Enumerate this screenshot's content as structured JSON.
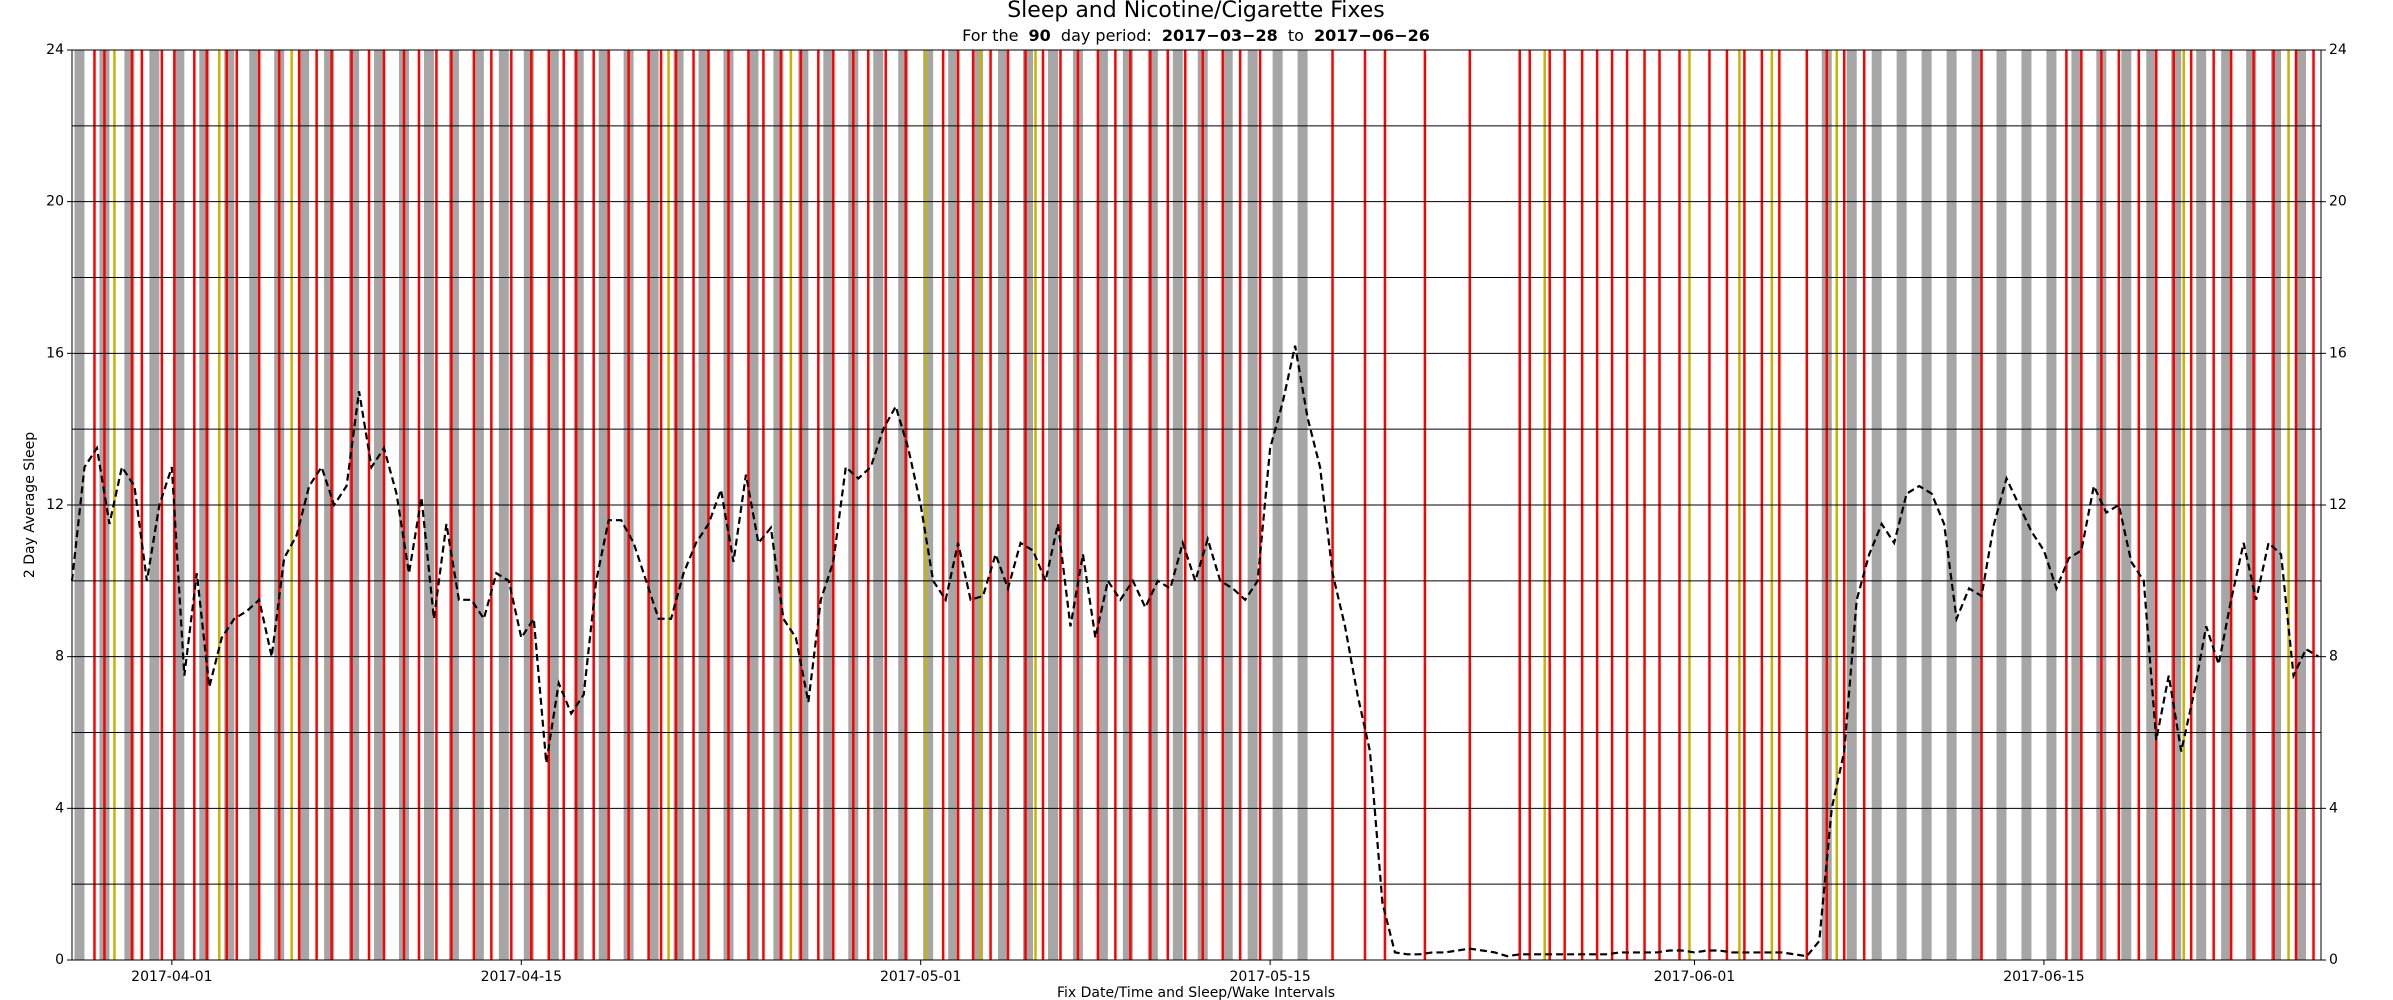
{
  "chart_data": {
    "type": "line",
    "title": "Sleep and Nicotine/Cigarette Fixes",
    "subtitle": [
      "For the",
      "90",
      "day period:",
      "2017−03−28",
      "to",
      "2017−06−26"
    ],
    "xlabel": "Fix Date/Time and Sleep/Wake Intervals",
    "ylabel": "2 Day Average Sleep",
    "xlim": [
      87,
      177.1
    ],
    "xticks": [
      {
        "value": 91,
        "label": "2017-04-01"
      },
      {
        "value": 105,
        "label": "2017-04-15"
      },
      {
        "value": 121,
        "label": "2017-05-01"
      },
      {
        "value": 135,
        "label": "2017-05-15"
      },
      {
        "value": 152,
        "label": "2017-06-01"
      },
      {
        "value": 166,
        "label": "2017-06-15"
      }
    ],
    "ylim": [
      0,
      24
    ],
    "yticks": [
      0,
      4,
      8,
      12,
      16,
      20,
      24
    ],
    "yminor": [
      2,
      6,
      10,
      14,
      18,
      22
    ],
    "grid": true,
    "color": "#000000",
    "x": [
      87,
      87.5,
      88,
      88.5,
      89,
      89.5,
      90,
      90.5,
      91,
      91.5,
      92,
      92.5,
      93,
      93.5,
      94,
      94.5,
      95,
      95.5,
      96,
      96.5,
      97,
      97.5,
      98,
      98.5,
      99,
      99.5,
      100,
      100.5,
      101,
      101.5,
      102,
      102.5,
      103,
      103.5,
      104,
      104.5,
      105,
      105.5,
      106,
      106.5,
      107,
      107.5,
      108,
      108.5,
      109,
      109.5,
      110,
      110.5,
      111,
      111.5,
      112,
      112.5,
      113,
      113.5,
      114,
      114.5,
      115,
      115.5,
      116,
      116.5,
      117,
      117.5,
      118,
      118.5,
      119,
      119.5,
      120,
      120.5,
      121,
      121.5,
      122,
      122.5,
      123,
      123.5,
      124,
      124.5,
      125,
      125.5,
      126,
      126.5,
      127,
      127.5,
      128,
      128.5,
      129,
      129.5,
      130,
      130.5,
      131,
      131.5,
      132,
      132.5,
      133,
      133.5,
      134,
      134.5,
      135,
      135.5,
      136,
      136.5,
      137,
      137.5,
      138,
      138.5,
      139,
      139.5,
      140,
      140.5,
      141,
      141.5,
      142,
      142.5,
      143,
      143.5,
      144,
      144.5,
      145,
      145.5,
      146,
      146.5,
      147,
      147.5,
      148,
      148.5,
      149,
      149.5,
      150,
      150.5,
      151,
      151.5,
      152,
      152.5,
      153,
      153.5,
      154,
      154.5,
      155,
      155.5,
      156,
      156.5,
      157,
      157.5,
      158,
      158.5,
      159,
      159.5,
      160,
      160.5,
      161,
      161.5,
      162,
      162.5,
      163,
      163.5,
      164,
      164.5,
      165,
      165.5,
      166,
      166.5,
      167,
      167.5,
      168,
      168.5,
      169,
      169.5,
      170,
      170.5,
      171,
      171.5,
      172,
      172.5,
      173,
      173.5,
      174,
      174.5,
      175,
      175.5,
      176,
      176.5,
      177
    ],
    "values": [
      10,
      13,
      13.5,
      11.5,
      13,
      12.5,
      10,
      12,
      13,
      7.5,
      10.2,
      7.2,
      8.5,
      9,
      9.2,
      9.5,
      8,
      10.6,
      11.2,
      12.5,
      13,
      12,
      12.5,
      15,
      13,
      13.5,
      12.3,
      10.2,
      12.2,
      9,
      11.5,
      9.5,
      9.5,
      9,
      10.2,
      10,
      8.5,
      9,
      5.2,
      7.3,
      6.5,
      7,
      10,
      11.6,
      11.6,
      11,
      10,
      9,
      9,
      10.2,
      11,
      11.5,
      12.4,
      10.5,
      12.8,
      11,
      11.4,
      9,
      8.5,
      6.8,
      9.5,
      10.5,
      13,
      12.7,
      13,
      14,
      14.6,
      13.5,
      12,
      10,
      9.5,
      11,
      9.5,
      9.6,
      10.7,
      9.8,
      11,
      10.8,
      10,
      11.5,
      8.8,
      10.7,
      8.5,
      10,
      9.5,
      10,
      9.3,
      10,
      9.8,
      11,
      10,
      11.1,
      10,
      9.8,
      9.5,
      10,
      13.5,
      14.7,
      16.2,
      14.3,
      13,
      10.2,
      8.8,
      7,
      5.5,
      1.5,
      0.2,
      0.15,
      0.15,
      0.2,
      0.2,
      0.25,
      0.3,
      0.25,
      0.2,
      0.1,
      0.15,
      0.15,
      0.15,
      0.15,
      0.15,
      0.15,
      0.15,
      0.15,
      0.2,
      0.2,
      0.2,
      0.2,
      0.25,
      0.25,
      0.2,
      0.25,
      0.25,
      0.2,
      0.2,
      0.2,
      0.2,
      0.2,
      0.15,
      0.1,
      0.5,
      4,
      5.5,
      9.5,
      10.7,
      11.5,
      11,
      12.3,
      12.5,
      12.3,
      11.5,
      9,
      9.8,
      9.6,
      11.5,
      12.7,
      12,
      11.3,
      10.8,
      9.8,
      10.6,
      10.8,
      12.5,
      11.8,
      12,
      10.5,
      10,
      5.8,
      7.5,
      5.5,
      7,
      8.8,
      7.8,
      9.5,
      11,
      9.5,
      11,
      10.7,
      7.5,
      8.2,
      8
    ],
    "sleep_color": "#a6a6a6",
    "sleep": [
      [
        87.1,
        87.5
      ],
      [
        88.1,
        88.5
      ],
      [
        89.1,
        89.5
      ],
      [
        90.1,
        90.5
      ],
      [
        91.1,
        91.5
      ],
      [
        92.1,
        92.5
      ],
      [
        93.1,
        93.5
      ],
      [
        94.1,
        94.5
      ],
      [
        95.1,
        95.5
      ],
      [
        96.1,
        96.5
      ],
      [
        97.1,
        97.5
      ],
      [
        98.1,
        98.5
      ],
      [
        99.1,
        99.5
      ],
      [
        100.1,
        100.5
      ],
      [
        101.1,
        101.5
      ],
      [
        102.1,
        102.5
      ],
      [
        103.1,
        103.5
      ],
      [
        104.1,
        104.5
      ],
      [
        105.1,
        105.5
      ],
      [
        106.1,
        106.5
      ],
      [
        107.1,
        107.5
      ],
      [
        108.1,
        108.5
      ],
      [
        109.1,
        109.5
      ],
      [
        110.1,
        110.5
      ],
      [
        111.1,
        111.5
      ],
      [
        112.1,
        112.5
      ],
      [
        113.1,
        113.5
      ],
      [
        114.1,
        114.5
      ],
      [
        115.1,
        115.5
      ],
      [
        116.1,
        116.5
      ],
      [
        117.1,
        117.5
      ],
      [
        118.1,
        118.5
      ],
      [
        119.1,
        119.5
      ],
      [
        120.1,
        120.5
      ],
      [
        121.1,
        121.5
      ],
      [
        122.1,
        122.5
      ],
      [
        123.1,
        123.5
      ],
      [
        124.1,
        124.5
      ],
      [
        125.1,
        125.5
      ],
      [
        126.1,
        126.5
      ],
      [
        127.1,
        127.5
      ],
      [
        128.1,
        128.5
      ],
      [
        129.1,
        129.5
      ],
      [
        130.1,
        130.5
      ],
      [
        131.1,
        131.5
      ],
      [
        132.1,
        132.5
      ],
      [
        133.1,
        133.5
      ],
      [
        134.1,
        134.5
      ],
      [
        135.1,
        135.5
      ],
      [
        136.1,
        136.5
      ],
      [
        157.1,
        157.5
      ],
      [
        158.1,
        158.5
      ],
      [
        159.1,
        159.5
      ],
      [
        160.1,
        160.5
      ],
      [
        161.1,
        161.5
      ],
      [
        162.1,
        162.5
      ],
      [
        163.1,
        163.5
      ],
      [
        164.1,
        164.5
      ],
      [
        165.1,
        165.5
      ],
      [
        166.1,
        166.5
      ],
      [
        167.1,
        167.5
      ],
      [
        168.1,
        168.5
      ],
      [
        169.1,
        169.5
      ],
      [
        170.1,
        170.5
      ],
      [
        171.1,
        171.5
      ],
      [
        172.1,
        172.5
      ],
      [
        173.1,
        173.5
      ],
      [
        174.1,
        174.5
      ],
      [
        175.1,
        175.5
      ],
      [
        176.1,
        176.5
      ]
    ],
    "fix_color": "#ff0000",
    "fixes": [
      87.9,
      88.3,
      89.4,
      89.8,
      90.6,
      91.1,
      91.9,
      92.4,
      93.2,
      93.6,
      94.5,
      95.3,
      96.1,
      96.8,
      97.4,
      98.2,
      98.9,
      99.5,
      100.3,
      100.9,
      101.6,
      102.2,
      103.1,
      103.8,
      104.6,
      105.4,
      106.1,
      106.7,
      107.2,
      107.9,
      108.5,
      109.3,
      110.1,
      110.6,
      111.2,
      111.9,
      112.5,
      113.3,
      114.1,
      114.7,
      115.4,
      116.2,
      116.9,
      117.5,
      118.3,
      118.9,
      119.6,
      120.4,
      121.9,
      122.5,
      123.1,
      123.8,
      124.5,
      125.2,
      125.9,
      126.6,
      127.3,
      128.1,
      128.8,
      129.4,
      130.2,
      130.9,
      131.6,
      132.3,
      133.1,
      133.8,
      134.6,
      137.5,
      138.8,
      139.6,
      141.2,
      143.0,
      145.0,
      145.4,
      146.2,
      146.8,
      147.5,
      148.1,
      148.7,
      149.3,
      150.0,
      150.6,
      151.4,
      152.6,
      153.3,
      154.0,
      154.7,
      155.4,
      156.5,
      157.3,
      158.0,
      158.8,
      163.5,
      166.9,
      167.5,
      168.3,
      169.0,
      169.8,
      170.5,
      171.2,
      171.9,
      172.8,
      173.5,
      174.4,
      175.2,
      176.1,
      176.8
    ],
    "fix2_color": "#c8b400",
    "fixes2": [
      88.7,
      92.9,
      95.8,
      110.9,
      115.8,
      121.2,
      123.4,
      125.6,
      146.0,
      151.8,
      153.8,
      155.1,
      157.7,
      171.6,
      175.8
    ]
  }
}
